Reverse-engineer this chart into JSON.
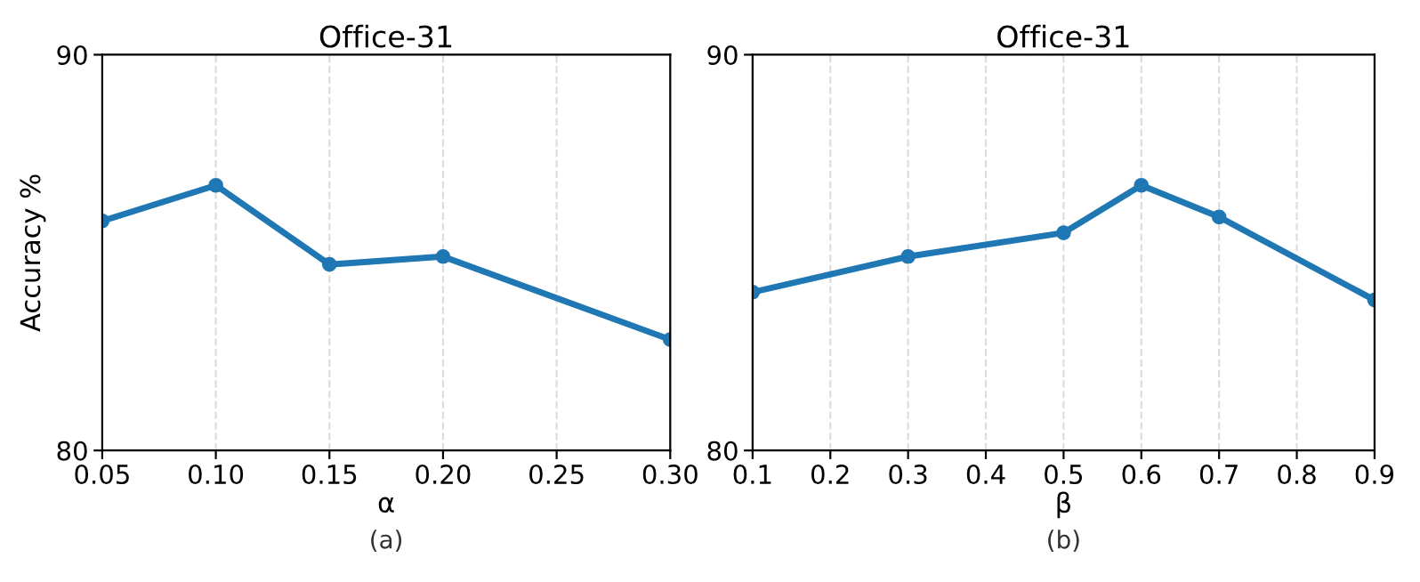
{
  "chart_data": [
    {
      "type": "line",
      "title": "Office-31",
      "xlabel": "α",
      "ylabel": "Accuracy %",
      "annotations": [
        "(a)"
      ],
      "x": [
        0.05,
        0.1,
        0.15,
        0.2,
        0.3
      ],
      "series": [
        {
          "color": "#1f77b4",
          "values": [
            85.8,
            86.7,
            84.7,
            84.9,
            82.8
          ]
        }
      ],
      "xlim": [
        0.05,
        0.3
      ],
      "xticks": [
        {
          "value": 0.05,
          "label": "0.05"
        },
        {
          "value": 0.1,
          "label": "0.10"
        },
        {
          "value": 0.15,
          "label": "0.15"
        },
        {
          "value": 0.2,
          "label": "0.20"
        },
        {
          "value": 0.25,
          "label": "0.25"
        },
        {
          "value": 0.3,
          "label": "0.30"
        }
      ],
      "ylim": [
        80,
        90
      ],
      "yticks": [
        80,
        90
      ],
      "grid": true,
      "marker": "circle",
      "line_style": "solid"
    },
    {
      "type": "line",
      "title": "Office-31",
      "xlabel": "β",
      "annotations": [
        "(b)"
      ],
      "x": [
        0.1,
        0.3,
        0.5,
        0.6,
        0.7,
        0.9
      ],
      "series": [
        {
          "color": "#1f77b4",
          "values": [
            84.0,
            84.9,
            85.5,
            86.7,
            85.9,
            83.8
          ]
        }
      ],
      "xlim": [
        0.1,
        0.9
      ],
      "xticks": [
        0.1,
        0.2,
        0.3,
        0.4,
        0.5,
        0.6,
        0.7,
        0.8,
        0.9
      ],
      "ylim": [
        80,
        90
      ],
      "yticks": [
        80,
        90
      ],
      "grid": true,
      "marker": "circle",
      "line_style": "solid"
    }
  ]
}
